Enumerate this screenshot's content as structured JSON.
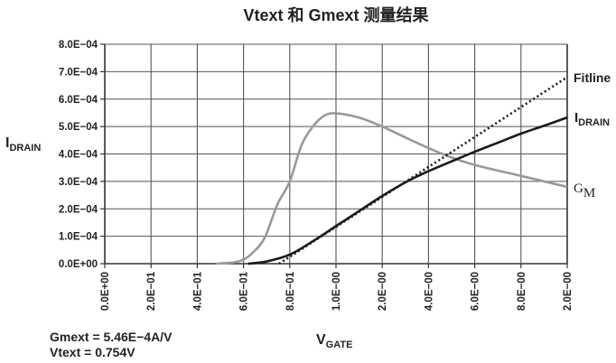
{
  "chart_data": {
    "type": "line",
    "title": "Vtext 和 Gmext 测量结果",
    "xlabel": {
      "main": "V",
      "sub": "GATE"
    },
    "ylabel": {
      "main": "I",
      "sub": "DRAIN"
    },
    "x_tick_labels": [
      "0.0E+00",
      "2.0E−01",
      "4.0E−01",
      "6.0E−01",
      "8.0E−01",
      "1.0E−00",
      "2.0E−00",
      "4.0E−00",
      "6.0E−00",
      "8.0E−00",
      "2.0E−00"
    ],
    "y_tick_labels": [
      "0.0E+00",
      "1.0E−04",
      "2.0E−04",
      "3.0E−04",
      "4.0E−04",
      "5.0E−04",
      "6.0E−04",
      "7.0E−04",
      "8.0E−04"
    ],
    "ylim": [
      0,
      0.0008
    ],
    "grid": true,
    "x_note": "x positions given as positions along the printed tick sequence (0 = first tick, 10 = last tick)",
    "series": [
      {
        "name": "Fitline",
        "label": {
          "main": "Fitline",
          "sub": ""
        },
        "style": "dotted",
        "color": "#1a1a1a",
        "points": [
          [
            3.77,
            0
          ],
          [
            10,
            0.00068
          ]
        ]
      },
      {
        "name": "IDRAIN",
        "label": {
          "main": "I",
          "sub": "DRAIN"
        },
        "style": "solid",
        "color": "#1a1a1a",
        "points": [
          [
            3.1,
            0
          ],
          [
            3.5,
            8e-06
          ],
          [
            4.0,
            3.3e-05
          ],
          [
            4.5,
            8.2e-05
          ],
          [
            5.0,
            0.000137
          ],
          [
            5.5,
            0.000192
          ],
          [
            6.0,
            0.000247
          ],
          [
            6.54,
            0.0003
          ],
          [
            6.97,
            0.000335
          ],
          [
            7.5,
            0.000373
          ],
          [
            8.0,
            0.000408
          ],
          [
            8.5,
            0.000441
          ],
          [
            9.0,
            0.000474
          ],
          [
            9.5,
            0.000503
          ],
          [
            10,
            0.000533
          ]
        ]
      },
      {
        "name": "GM",
        "label": {
          "main": "G",
          "sub": "M"
        },
        "style": "solid",
        "color": "#999999",
        "points": [
          [
            2.4,
            0
          ],
          [
            2.8,
            5e-06
          ],
          [
            3.0,
            1.5e-05
          ],
          [
            3.2,
            4e-05
          ],
          [
            3.46,
            9.5e-05
          ],
          [
            3.73,
            0.000215
          ],
          [
            4.0,
            0.0003
          ],
          [
            4.25,
            0.00043
          ],
          [
            4.5,
            0.0005
          ],
          [
            4.75,
            0.00054
          ],
          [
            5.0,
            0.000548
          ],
          [
            5.49,
            0.000533
          ],
          [
            6.0,
            0.0005
          ],
          [
            6.54,
            0.000457
          ],
          [
            7.3,
            0.0004
          ],
          [
            8.0,
            0.00036
          ],
          [
            9.0,
            0.00032
          ],
          [
            10,
            0.00028
          ]
        ]
      }
    ],
    "annotations": [
      "Gmext = 5.46E−4A/V",
      "Vtext = 0.754V"
    ]
  }
}
